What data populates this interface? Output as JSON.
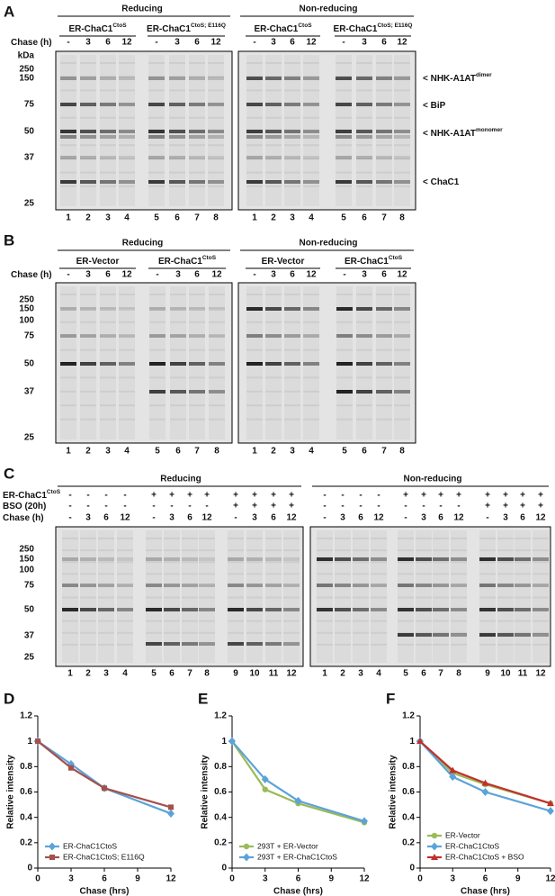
{
  "panels": [
    {
      "letter": "A",
      "conditions": [
        {
          "title": "Reducing",
          "groups": [
            {
              "label": "ER-ChaC1",
              "sup": "CtoS"
            },
            {
              "label": "ER-ChaC1",
              "sup": "CtoS; E116Q"
            }
          ]
        },
        {
          "title": "Non-reducing",
          "groups": [
            {
              "label": "ER-ChaC1",
              "sup": "CtoS"
            },
            {
              "label": "ER-ChaC1",
              "sup": "CtoS; E116Q"
            }
          ]
        }
      ],
      "rows": [
        {
          "label": "Chase (h)",
          "values": [
            "-",
            "3",
            "6",
            "12"
          ]
        }
      ],
      "kda_label": "kDa",
      "markers": [
        "250",
        "150",
        "75",
        "50",
        "37",
        "25"
      ],
      "annotations": [
        {
          "label": "< NHK-A1AT",
          "sup": "dimer"
        },
        {
          "label": "< BiP"
        },
        {
          "label": "< NHK-A1AT",
          "sup": "monomer"
        },
        {
          "label": "< ChaC1"
        }
      ],
      "lanes": [
        "1",
        "2",
        "3",
        "4",
        "5",
        "6",
        "7",
        "8"
      ]
    },
    {
      "letter": "B",
      "conditions": [
        {
          "title": "Reducing",
          "groups": [
            {
              "label": "ER-Vector"
            },
            {
              "label": "ER-ChaC1",
              "sup": "CtoS"
            }
          ]
        },
        {
          "title": "Non-reducing",
          "groups": [
            {
              "label": "ER-Vector"
            },
            {
              "label": "ER-ChaC1",
              "sup": "CtoS"
            }
          ]
        }
      ],
      "rows": [
        {
          "label": "Chase (h)",
          "values": [
            "-",
            "3",
            "6",
            "12"
          ]
        }
      ],
      "kda_label": "kDa",
      "markers": [
        "250",
        "150",
        "100",
        "75",
        "50",
        "37",
        "25"
      ],
      "lanes": [
        "1",
        "2",
        "3",
        "4",
        "5",
        "6",
        "7",
        "8"
      ]
    },
    {
      "letter": "C",
      "conditions": [
        {
          "title": "Reducing"
        },
        {
          "title": "Non-reducing"
        }
      ],
      "rows": [
        {
          "label": "ER-ChaC1",
          "sup": "CtoS",
          "values": [
            "-",
            "-",
            "-",
            "-",
            "+",
            "+",
            "+",
            "+",
            "+",
            "+",
            "+",
            "+"
          ]
        },
        {
          "label": "BSO (20h)",
          "values": [
            "-",
            "-",
            "-",
            "-",
            "-",
            "-",
            "-",
            "-",
            "+",
            "+",
            "+",
            "+"
          ]
        },
        {
          "label": "Chase (h)",
          "values": [
            "-",
            "3",
            "6",
            "12",
            "-",
            "3",
            "6",
            "12",
            "-",
            "3",
            "6",
            "12"
          ]
        }
      ],
      "kda_label": "kDa",
      "markers": [
        "250",
        "150",
        "100",
        "75",
        "50",
        "37",
        "25"
      ],
      "lanes": [
        "1",
        "2",
        "3",
        "4",
        "5",
        "6",
        "7",
        "8",
        "9",
        "10",
        "11",
        "12"
      ]
    }
  ],
  "chart_data": [
    {
      "type": "line",
      "panel": "D",
      "xlabel": "Chase (hrs)",
      "ylabel": "Relative intensity",
      "x": [
        0,
        3,
        6,
        12
      ],
      "xlim": [
        0,
        12
      ],
      "xticks": [
        0,
        3,
        6,
        9,
        12
      ],
      "ylim": [
        0,
        1.2
      ],
      "yticks": [
        0,
        0.2,
        0.4,
        0.6,
        0.8,
        1,
        1.2
      ],
      "legend": "lower left",
      "series": [
        {
          "name": "ER-ChaC1CtoS",
          "color": "#5ba3d9",
          "marker": "diamond",
          "values": [
            1,
            0.82,
            0.63,
            0.43
          ]
        },
        {
          "name": "ER-ChaC1CtoS; E116Q",
          "color": "#a5504b",
          "marker": "square",
          "values": [
            1,
            0.79,
            0.63,
            0.48
          ]
        }
      ]
    },
    {
      "type": "line",
      "panel": "E",
      "xlabel": "Chase (hrs)",
      "ylabel": "Relative intensity",
      "x": [
        0,
        3,
        6,
        12
      ],
      "xlim": [
        0,
        12
      ],
      "xticks": [
        0,
        3,
        6,
        9,
        12
      ],
      "ylim": [
        0,
        1.2
      ],
      "yticks": [
        0,
        0.2,
        0.4,
        0.6,
        0.8,
        1,
        1.2
      ],
      "legend": "lower left",
      "series": [
        {
          "name": "293T + ER-Vector",
          "color": "#9bbb59",
          "marker": "circle",
          "values": [
            1,
            0.62,
            0.51,
            0.36
          ]
        },
        {
          "name": "293T + ER-ChaC1CtoS",
          "color": "#5ba3d9",
          "marker": "diamond",
          "values": [
            1,
            0.7,
            0.53,
            0.37
          ]
        }
      ]
    },
    {
      "type": "line",
      "panel": "F",
      "xlabel": "Chase (hrs)",
      "ylabel": "Relative intensity",
      "x": [
        0,
        3,
        6,
        12
      ],
      "xlim": [
        0,
        12
      ],
      "xticks": [
        0,
        3,
        6,
        9,
        12
      ],
      "ylim": [
        0,
        1.2
      ],
      "yticks": [
        0,
        0.2,
        0.4,
        0.6,
        0.8,
        1,
        1.2
      ],
      "legend": "lower left",
      "series": [
        {
          "name": "ER-Vector",
          "color": "#9bbb59",
          "marker": "circle",
          "values": [
            1,
            0.75,
            0.66,
            0.51
          ]
        },
        {
          "name": "ER-ChaC1CtoS",
          "color": "#5ba3d9",
          "marker": "diamond",
          "values": [
            1,
            0.72,
            0.6,
            0.45
          ]
        },
        {
          "name": "ER-ChaC1CtoS + BSO",
          "color": "#c0302c",
          "marker": "triangle",
          "values": [
            1,
            0.77,
            0.67,
            0.51
          ]
        }
      ]
    }
  ]
}
